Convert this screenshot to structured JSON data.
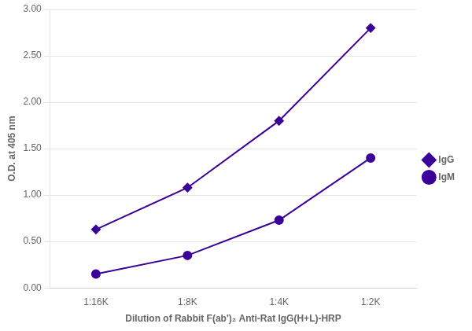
{
  "chart_data": {
    "type": "line",
    "xlabel": "Dilution of Rabbit F(ab')₂ Anti-Rat IgG(H+L)-HRP",
    "ylabel": "O.D. at 405 nm",
    "categories": [
      "1:16K",
      "1:8K",
      "1:4K",
      "1:2K"
    ],
    "series": [
      {
        "name": "IgG",
        "color": "#3a0099",
        "marker": "diamond",
        "values": [
          0.63,
          1.08,
          1.8,
          2.8
        ]
      },
      {
        "name": "IgM",
        "color": "#3a0099",
        "marker": "circle",
        "values": [
          0.15,
          0.35,
          0.73,
          1.4
        ]
      }
    ],
    "ylim": [
      0.0,
      3.0
    ],
    "yticks": [
      {
        "value": 0.0,
        "label": "0.00"
      },
      {
        "value": 0.5,
        "label": "0.50"
      },
      {
        "value": 1.0,
        "label": "1.00"
      },
      {
        "value": 1.5,
        "label": "1.50"
      },
      {
        "value": 2.0,
        "label": "2.00"
      },
      {
        "value": 2.5,
        "label": "2.50"
      },
      {
        "value": 3.0,
        "label": "3.00"
      }
    ],
    "grid": "y",
    "legend": "right"
  }
}
